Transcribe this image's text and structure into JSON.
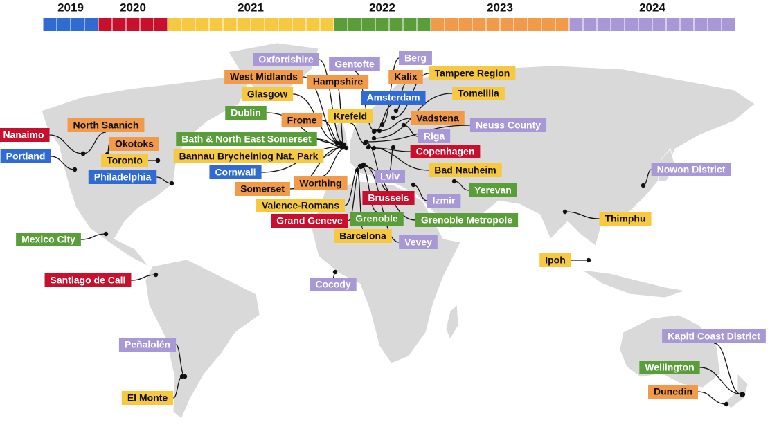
{
  "years": [
    {
      "label": "2019",
      "color": "#2f6bd3",
      "text_color": "#ffffff",
      "places": [
        "Portland",
        "Philadelphia",
        "Cornwall",
        "Amsterdam"
      ]
    },
    {
      "label": "2020",
      "color": "#c8102e",
      "text_color": "#ffffff",
      "places": [
        "Nanaimo",
        "Santiago de Cali",
        "Grand Geneve",
        "Brussels",
        "Copenhagen"
      ]
    },
    {
      "label": "2021",
      "color": "#f7c940",
      "text_color": "#111111",
      "places": [
        "Glasgow",
        "Toronto",
        "Bannau Brycheiniog Nat. Park",
        "Valence-Romans",
        "Barcelona",
        "Krefeld",
        "Tampere Region",
        "Tomelilla",
        "Bad Nauheim",
        "Thimphu",
        "Ipoh",
        "El Monte"
      ]
    },
    {
      "label": "2022",
      "color": "#5a9e3a",
      "text_color": "#ffffff",
      "places": [
        "Dublin",
        "Bath & North East Somerset",
        "Mexico City",
        "Grenoble",
        "Grenoble Metropole",
        "Yerevan",
        "Wellington"
      ]
    },
    {
      "label": "2023",
      "color": "#f09a4a",
      "text_color": "#111111",
      "places": [
        "West Midlands",
        "Hampshire",
        "Kalix",
        "North Saanich",
        "Okotoks",
        "Frome",
        "Somerset",
        "Worthing",
        "Vadstena",
        "Dunedin"
      ]
    },
    {
      "label": "2024",
      "color": "#a998d6",
      "text_color": "#ffffff",
      "places": [
        "Oxfordshire",
        "Gentofte",
        "Berg",
        "Neuss County",
        "Riga",
        "Lviv",
        "Izmir",
        "Vevey",
        "Nowon District",
        "Cocody",
        "Peñalolén",
        "Kapiti Coast District"
      ]
    }
  ]
}
